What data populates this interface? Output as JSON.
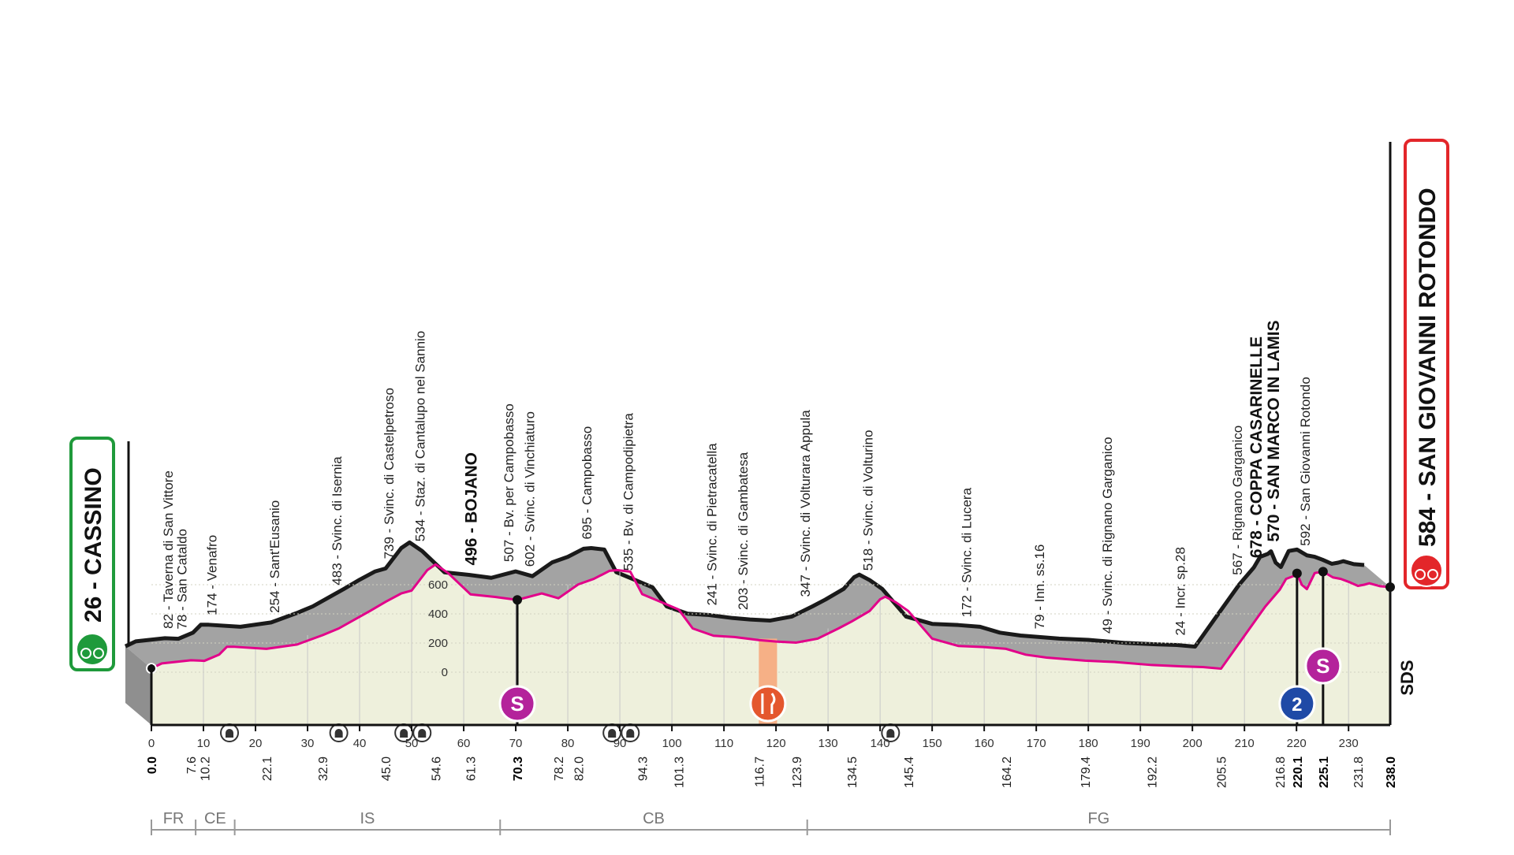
{
  "chart_data": {
    "type": "area",
    "title": "",
    "xlabel": "",
    "ylabel": "",
    "xlim": [
      0,
      238
    ],
    "ylim": [
      0,
      800
    ],
    "y_ticks": [
      "0",
      "200",
      "400",
      "600"
    ],
    "x_ticks": [
      "0",
      "10",
      "20",
      "30",
      "40",
      "50",
      "60",
      "70",
      "80",
      "90",
      "100",
      "110",
      "120",
      "130",
      "140",
      "150",
      "160",
      "170",
      "180",
      "190",
      "200",
      "210",
      "220",
      "230"
    ],
    "profile": {
      "km": [
        0,
        2,
        7.6,
        10.2,
        13,
        14.5,
        16,
        22.1,
        28,
        32.9,
        36,
        40,
        42,
        45.0,
        48,
        50,
        53,
        54.6,
        57,
        61.3,
        66,
        70.3,
        75,
        78.2,
        82.0,
        85,
        88,
        89.5,
        92,
        94.3,
        98,
        101.3,
        104,
        108,
        112,
        116.7,
        120,
        123.9,
        128,
        132,
        134.5,
        138,
        140,
        141,
        143,
        145.4,
        150,
        155,
        160,
        164.2,
        168,
        172,
        179.4,
        185,
        192.2,
        198,
        202,
        205.5,
        210,
        214,
        216.8,
        218,
        219.5,
        220.1,
        221,
        222,
        223.5,
        225.1,
        227,
        228.5,
        230,
        231.8,
        233,
        234,
        236,
        238.0
      ],
      "alt": [
        26,
        60,
        82,
        78,
        120,
        174,
        174,
        160,
        190,
        254,
        300,
        380,
        420,
        483,
        540,
        560,
        700,
        739,
        680,
        534,
        516,
        496,
        540,
        507,
        602,
        640,
        695,
        700,
        690,
        535,
        480,
        430,
        300,
        250,
        241,
        220,
        210,
        203,
        230,
        300,
        347,
        420,
        500,
        518,
        480,
        420,
        230,
        180,
        172,
        160,
        120,
        100,
        79,
        70,
        49,
        40,
        35,
        24,
        250,
        450,
        567,
        640,
        660,
        678,
        600,
        570,
        680,
        690,
        650,
        640,
        620,
        592,
        600,
        610,
        590,
        584
      ]
    },
    "start": {
      "altitude": "26",
      "name": "CASSINO"
    },
    "finish": {
      "altitude": "584",
      "name": "SAN GIOVANNI ROTONDO"
    },
    "waypoints": [
      {
        "km": 7.6,
        "text": "82 - Taverna di San Vittore",
        "bold": false
      },
      {
        "km": 10.2,
        "text": "78 - San Cataldo",
        "bold": false
      },
      {
        "km": 16,
        "text": "174 - Venafro",
        "bold": false
      },
      {
        "km": 28,
        "text": "254 - Sant'Eusanio",
        "bold": false
      },
      {
        "km": 40,
        "text": "483 - Svinc. di Isernia",
        "bold": false
      },
      {
        "km": 50,
        "text": "739 - Svinc. di Castelpetroso",
        "bold": false
      },
      {
        "km": 56,
        "text": "534 - Staz. di Cantalupo nel Sannio",
        "bold": false
      },
      {
        "km": 66,
        "text": "496 - BOJANO",
        "bold": true
      },
      {
        "km": 73,
        "text": "507 - Bv. per Campobasso",
        "bold": false
      },
      {
        "km": 77,
        "text": "602 - Svinc. di Vinchiaturo",
        "bold": false
      },
      {
        "km": 88,
        "text": "695 - Campobasso",
        "bold": false
      },
      {
        "km": 96,
        "text": "535 - Bv. di Campodipietra",
        "bold": false
      },
      {
        "km": 112,
        "text": "241 - Svinc. di Pietracatella",
        "bold": false
      },
      {
        "km": 118,
        "text": "203 - Svinc. di Gambatesa",
        "bold": false
      },
      {
        "km": 130,
        "text": "347 - Svinc. di Volturara Appula",
        "bold": false
      },
      {
        "km": 142,
        "text": "518 - Svinc. di Volturino",
        "bold": false
      },
      {
        "km": 161,
        "text": "172 - Svinc. di Lucera",
        "bold": false
      },
      {
        "km": 175,
        "text": "79 - Inn. ss.16",
        "bold": false
      },
      {
        "km": 188,
        "text": "49 - Svinc. di Rignano Garganico",
        "bold": false
      },
      {
        "km": 202,
        "text": "24 - Incr. sp.28",
        "bold": false
      },
      {
        "km": 213,
        "text": "567 - Rignano Garganico",
        "bold": false
      },
      {
        "km": 216.8,
        "text": "678 - COPPA CASARINELLE",
        "bold": true
      },
      {
        "km": 220.1,
        "text": "570 - SAN MARCO IN LAMIS",
        "bold": true
      },
      {
        "km": 226,
        "text": "592 - San Giovanni Rotondo",
        "bold": false
      }
    ],
    "distance_markers": [
      {
        "km": 0.0,
        "text": "0.0",
        "bold": true
      },
      {
        "km": 7.6,
        "text": "7.6",
        "bold": false
      },
      {
        "km": 10.2,
        "text": "10.2",
        "bold": false
      },
      {
        "km": 22.1,
        "text": "22.1",
        "bold": false
      },
      {
        "km": 32.9,
        "text": "32.9",
        "bold": false
      },
      {
        "km": 45.0,
        "text": "45.0",
        "bold": false
      },
      {
        "km": 54.6,
        "text": "54.6",
        "bold": false
      },
      {
        "km": 61.3,
        "text": "61.3",
        "bold": false
      },
      {
        "km": 70.3,
        "text": "70.3",
        "bold": true
      },
      {
        "km": 78.2,
        "text": "78.2",
        "bold": false
      },
      {
        "km": 82.0,
        "text": "82.0",
        "bold": false
      },
      {
        "km": 94.3,
        "text": "94.3",
        "bold": false
      },
      {
        "km": 101.3,
        "text": "101.3",
        "bold": false
      },
      {
        "km": 116.7,
        "text": "116.7",
        "bold": false
      },
      {
        "km": 123.9,
        "text": "123.9",
        "bold": false
      },
      {
        "km": 134.5,
        "text": "134.5",
        "bold": false
      },
      {
        "km": 145.4,
        "text": "145.4",
        "bold": false
      },
      {
        "km": 164.2,
        "text": "164.2",
        "bold": false
      },
      {
        "km": 179.4,
        "text": "179.4",
        "bold": false
      },
      {
        "km": 192.2,
        "text": "192.2",
        "bold": false
      },
      {
        "km": 205.5,
        "text": "205.5",
        "bold": false
      },
      {
        "km": 216.8,
        "text": "216.8",
        "bold": false
      },
      {
        "km": 220.1,
        "text": "220.1",
        "bold": true
      },
      {
        "km": 225.1,
        "text": "225.1",
        "bold": true
      },
      {
        "km": 231.8,
        "text": "231.8",
        "bold": false
      },
      {
        "km": 238.0,
        "text": "238.0",
        "bold": true
      }
    ],
    "regions": [
      {
        "from": 0,
        "to": 8.5,
        "text": "FR"
      },
      {
        "from": 8.5,
        "to": 16,
        "text": "CE"
      },
      {
        "from": 16,
        "to": 67,
        "text": "IS"
      },
      {
        "from": 67,
        "to": 126,
        "text": "CB"
      },
      {
        "from": 126,
        "to": 238,
        "text": "FG"
      }
    ],
    "sprints": [
      {
        "km": 70.3,
        "text": "S"
      },
      {
        "km": 225.1,
        "text": "S"
      }
    ],
    "climbs": [
      {
        "km": 220.1,
        "text": "2"
      }
    ],
    "feed_zone": {
      "from": 116.7,
      "to": 120.2
    },
    "tunnels_km": [
      15,
      36,
      48.5,
      52,
      88.5,
      92,
      142
    ],
    "watermark": "SDS",
    "colors": {
      "road_edge": "#1a1a1a",
      "side_face": "#8f8f8f",
      "top_face": "#a3a3a3",
      "front_face": "#eef0dc",
      "profile_line": "#e2008a",
      "start_green": "#1f9a3b",
      "finish_red": "#e3262a",
      "sprint_purple": "#b4239b",
      "climb_blue": "#1f4aa6",
      "feed_orange": "#f6b086"
    }
  }
}
